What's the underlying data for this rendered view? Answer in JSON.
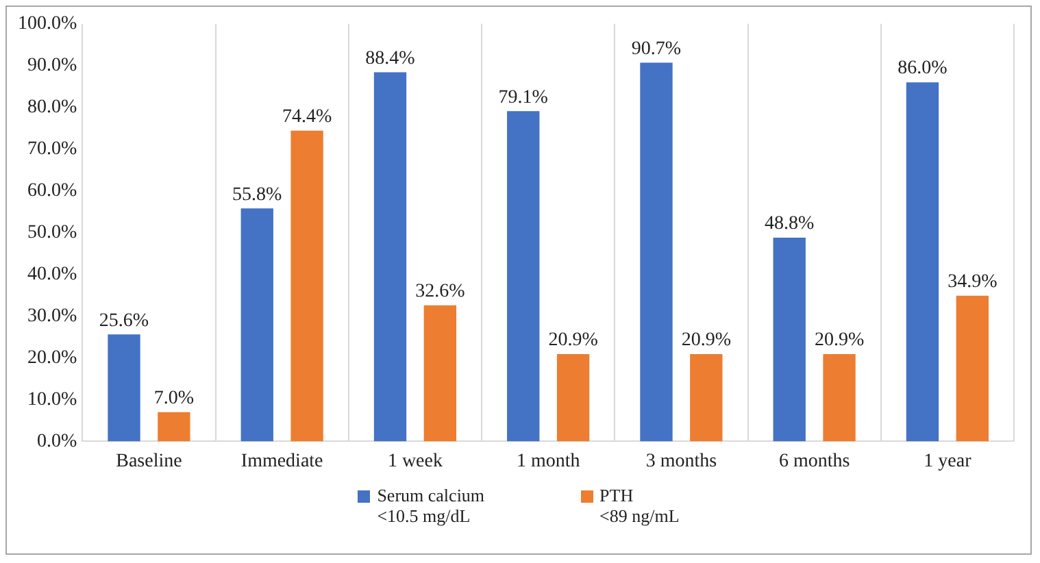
{
  "chart_data": {
    "type": "bar",
    "categories": [
      "Baseline",
      "Immediate",
      "1 week",
      "1 month",
      "3 months",
      "6 months",
      "1 year"
    ],
    "series": [
      {
        "name": "Serum calcium\n<10.5 mg/dL",
        "color": "#4472c4",
        "values": [
          25.6,
          55.8,
          88.4,
          79.1,
          90.7,
          48.8,
          86.0
        ],
        "value_labels": [
          "25.6%",
          "55.8%",
          "88.4%",
          "79.1%",
          "90.7%",
          "48.8%",
          "86.0%"
        ]
      },
      {
        "name": "PTH\n<89 ng/mL",
        "color": "#ed7d31",
        "values": [
          7.0,
          74.4,
          32.6,
          20.9,
          20.9,
          20.9,
          34.9
        ],
        "value_labels": [
          "7.0%",
          "74.4%",
          "32.6%",
          "20.9%",
          "20.9%",
          "20.9%",
          "34.9%"
        ]
      }
    ],
    "ylim": [
      0,
      100
    ],
    "yticks": [
      {
        "value": 0,
        "label": "0.0%"
      },
      {
        "value": 10,
        "label": "10.0%"
      },
      {
        "value": 20,
        "label": "20.0%"
      },
      {
        "value": 30,
        "label": "30.0%"
      },
      {
        "value": 40,
        "label": "40.0%"
      },
      {
        "value": 50,
        "label": "50.0%"
      },
      {
        "value": 60,
        "label": "60.0%"
      },
      {
        "value": 70,
        "label": "70.0%"
      },
      {
        "value": 80,
        "label": "80.0%"
      },
      {
        "value": 90,
        "label": "90.0%"
      },
      {
        "value": 100,
        "label": "100.0%"
      }
    ],
    "grid": "x",
    "legend": "bottom"
  }
}
